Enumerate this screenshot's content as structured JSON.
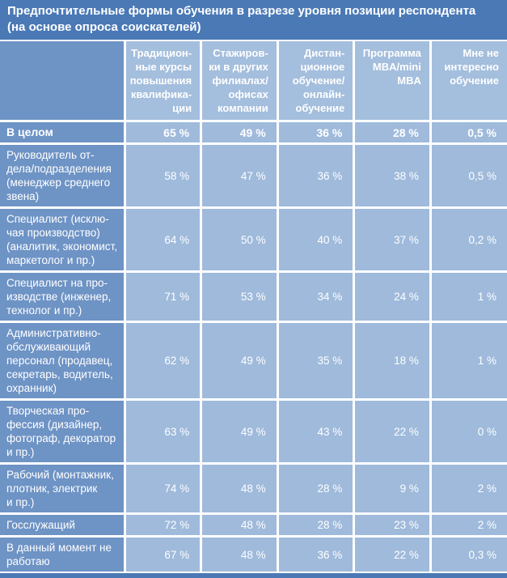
{
  "title": "Предпочтительные формы обучения в разрезе уровня позиции респондента\n(на основе опроса соискателей)",
  "colors": {
    "title_bg": "#4a79b6",
    "label_bg": "#6e93c5",
    "header_bg": "#a4bedd",
    "cell_bg": "#9fbadb",
    "grid": "#ffffff",
    "text": "#ffffff"
  },
  "table": {
    "corner": "",
    "columns": [
      "Традицион-\nные курсы\nповышения\nквалифика-\nции",
      "Стажиров-\nки в других\nфилиалах/\nофисах\nкомпании",
      "Дистан-\nционное\nобучение/\nонлайн-\nобучение",
      "Программа\nMBA/mini\nMBA",
      "Мне не\nинтересно\nобучение"
    ],
    "rows": [
      {
        "label": "В целом",
        "values": [
          "65 %",
          "49 %",
          "36 %",
          "28 %",
          "0,5 %"
        ]
      },
      {
        "label": "Руководитель от-\nдела/подразделения\n(менеджер среднего\nзвена)",
        "values": [
          "58 %",
          "47 %",
          "36 %",
          "38 %",
          "0,5 %"
        ]
      },
      {
        "label": "Специалист (исклю-\nчая производство)\n(аналитик, экономист,\nмаркетолог и пр.)",
        "values": [
          "64 %",
          "50 %",
          "40 %",
          "37 %",
          "0,2 %"
        ]
      },
      {
        "label": "Специалист на про-\nизводстве (инженер,\nтехнолог и пр.)",
        "values": [
          "71 %",
          "53 %",
          "34 %",
          "24 %",
          "1 %"
        ]
      },
      {
        "label": "Административно-\nобслуживающий\nперсонал (продавец,\nсекретарь, водитель,\nохранник)",
        "values": [
          "62 %",
          "49 %",
          "35 %",
          "18 %",
          "1 %"
        ]
      },
      {
        "label": "Творческая про-\nфессия (дизайнер,\nфотограф, декоратор\nи пр.)",
        "values": [
          "63 %",
          "49 %",
          "43 %",
          "22 %",
          "0 %"
        ]
      },
      {
        "label": "Рабочий (монтажник,\nплотник, электрик\nи пр.)",
        "values": [
          "74 %",
          "48 %",
          "28 %",
          "9 %",
          "2 %"
        ]
      },
      {
        "label": "Госслужащий",
        "values": [
          "72 %",
          "48 %",
          "28 %",
          "23 %",
          "2 %"
        ]
      },
      {
        "label": "В данный момент не\nработаю",
        "values": [
          "67 %",
          "48 %",
          "36 %",
          "22 %",
          "0,3 %"
        ]
      }
    ]
  },
  "chart_data": {
    "type": "table",
    "title": "Предпочтительные формы обучения в разрезе уровня позиции респондента (на основе опроса соискателей)",
    "unit": "%",
    "decimal_separator": ",",
    "columns": [
      "Традиционные курсы повышения квалификации",
      "Стажировки в других филиалах/офисах компании",
      "Дистанционное обучение/онлайн-обучение",
      "Программа MBA/mini MBA",
      "Мне не интересно обучение"
    ],
    "rows": [
      {
        "label": "В целом",
        "values": [
          65,
          49,
          36,
          28,
          0.5
        ]
      },
      {
        "label": "Руководитель отдела/подразделения (менеджер среднего звена)",
        "values": [
          58,
          47,
          36,
          38,
          0.5
        ]
      },
      {
        "label": "Специалист (исключая производство) (аналитик, экономист, маркетолог и пр.)",
        "values": [
          64,
          50,
          40,
          37,
          0.2
        ]
      },
      {
        "label": "Специалист на производстве (инженер, технолог и пр.)",
        "values": [
          71,
          53,
          34,
          24,
          1
        ]
      },
      {
        "label": "Административно-обслуживающий персонал (продавец, секретарь, водитель, охранник)",
        "values": [
          62,
          49,
          35,
          18,
          1
        ]
      },
      {
        "label": "Творческая профессия (дизайнер, фотограф, декоратор и пр.)",
        "values": [
          63,
          49,
          43,
          22,
          0
        ]
      },
      {
        "label": "Рабочий (монтажник, плотник, электрик и пр.)",
        "values": [
          74,
          48,
          28,
          9,
          2
        ]
      },
      {
        "label": "Госслужащий",
        "values": [
          72,
          48,
          28,
          23,
          2
        ]
      },
      {
        "label": "В данный момент не работаю",
        "values": [
          67,
          48,
          36,
          22,
          0.3
        ]
      }
    ]
  }
}
